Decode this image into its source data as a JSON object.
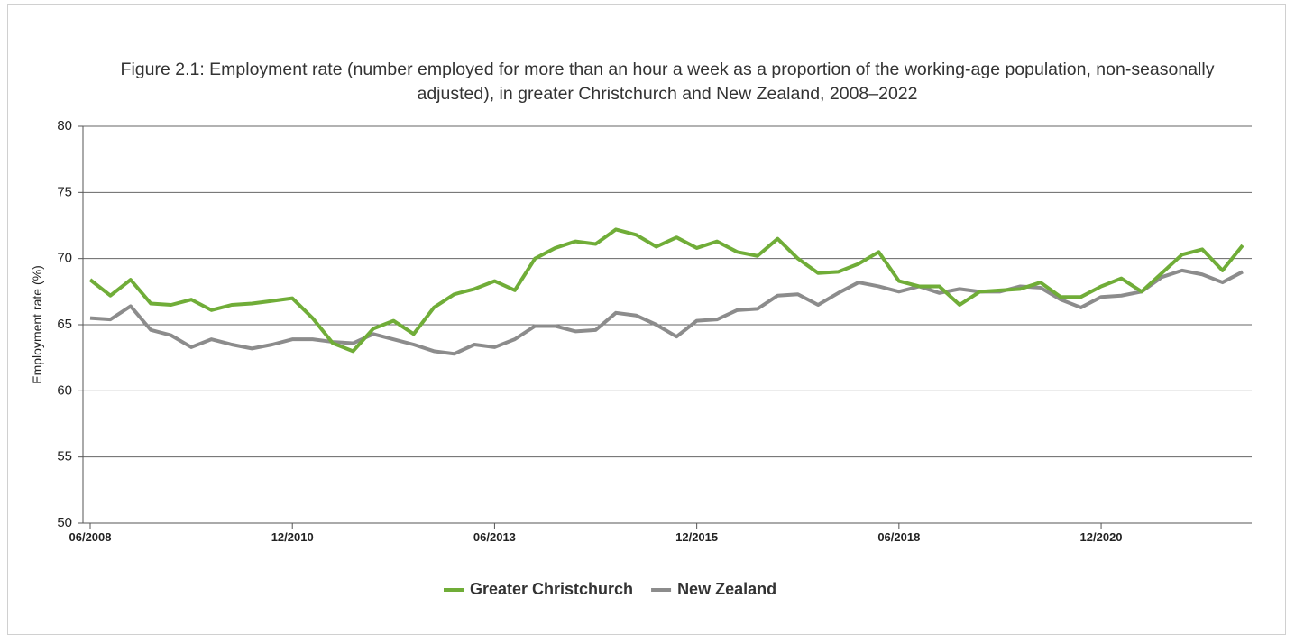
{
  "chart_data": {
    "type": "line",
    "title": "Figure 2.1: Employment rate (number employed for more than an hour a week as a proportion of the working-age population, non-seasonally adjusted), in greater Christchurch and New Zealand, 2008–2022",
    "y_label": "Employment rate (%)",
    "categories": [
      "06/2008",
      null,
      null,
      null,
      null,
      null,
      null,
      null,
      null,
      null,
      "12/2010",
      null,
      null,
      null,
      null,
      null,
      null,
      null,
      null,
      null,
      "06/2013",
      null,
      null,
      null,
      null,
      null,
      null,
      null,
      null,
      null,
      "12/2015",
      null,
      null,
      null,
      null,
      null,
      null,
      null,
      null,
      null,
      "06/2018",
      null,
      null,
      null,
      null,
      null,
      null,
      null,
      null,
      null,
      "12/2020",
      null,
      null,
      null,
      null,
      null,
      null,
      null
    ],
    "series": [
      {
        "name": "Greater Christchurch",
        "color": "#70ad38",
        "values": [
          68.4,
          67.2,
          68.4,
          66.6,
          66.5,
          66.9,
          66.1,
          66.5,
          66.6,
          66.8,
          67.0,
          65.5,
          63.6,
          63.0,
          64.7,
          65.3,
          64.3,
          66.3,
          67.3,
          67.7,
          68.3,
          67.6,
          70.0,
          70.8,
          71.3,
          71.1,
          72.2,
          71.8,
          70.9,
          71.6,
          70.8,
          71.3,
          70.5,
          70.2,
          71.5,
          70.0,
          68.9,
          69.0,
          69.6,
          70.5,
          68.3,
          67.9,
          67.9,
          66.5,
          67.5,
          67.6,
          67.7,
          68.2,
          67.1,
          67.1,
          67.9,
          68.5,
          67.5,
          68.9,
          70.3,
          70.7,
          69.1,
          71.0
        ]
      },
      {
        "name": "New Zealand",
        "color": "#8c8c8c",
        "values": [
          65.5,
          65.4,
          66.4,
          64.6,
          64.2,
          63.3,
          63.9,
          63.5,
          63.2,
          63.5,
          63.9,
          63.9,
          63.7,
          63.6,
          64.3,
          63.9,
          63.5,
          63.0,
          62.8,
          63.5,
          63.3,
          63.9,
          64.9,
          64.9,
          64.5,
          64.6,
          65.9,
          65.7,
          65.0,
          64.1,
          65.3,
          65.4,
          66.1,
          66.2,
          67.2,
          67.3,
          66.5,
          67.4,
          68.2,
          67.9,
          67.5,
          67.9,
          67.4,
          67.7,
          67.5,
          67.5,
          67.9,
          67.8,
          66.9,
          66.3,
          67.1,
          67.2,
          67.5,
          68.6,
          69.1,
          68.8,
          68.2,
          69.0
        ]
      }
    ],
    "ylim": [
      50,
      80
    ],
    "yticks": [
      50,
      55,
      60,
      65,
      70,
      75,
      80
    ],
    "grid": true,
    "legend": "bottom"
  }
}
